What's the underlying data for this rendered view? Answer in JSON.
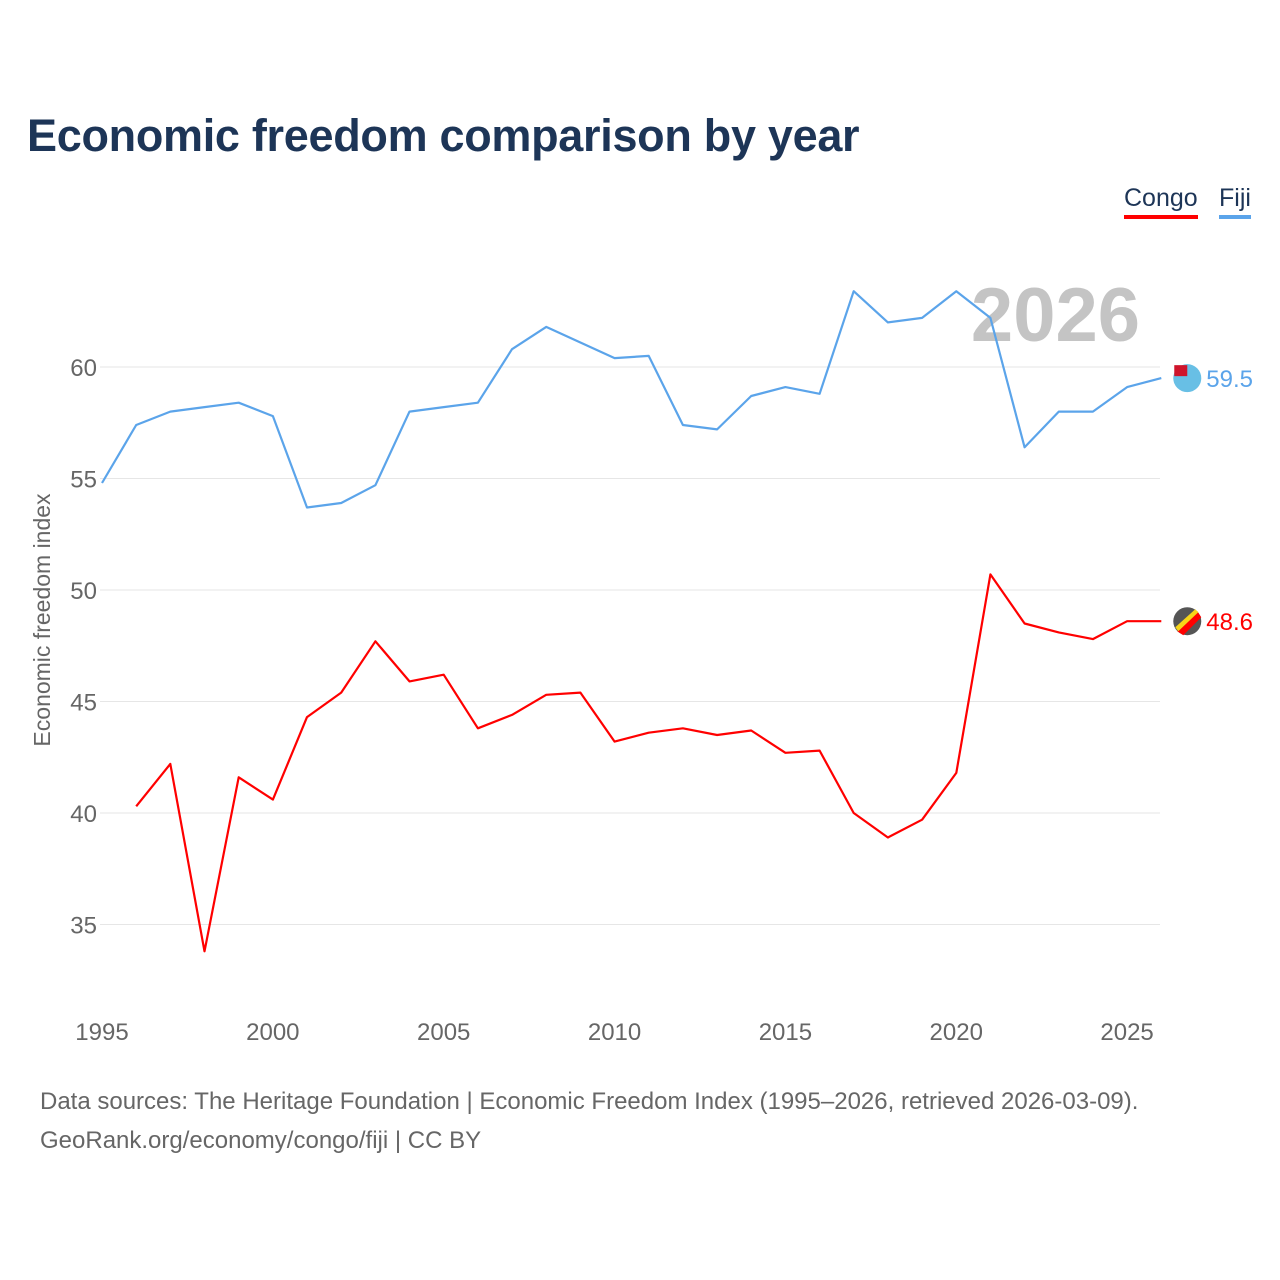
{
  "chart_data": {
    "type": "line",
    "title": "Economic freedom comparison by year",
    "xlabel": "",
    "ylabel": "Economic freedom index",
    "xlim": [
      1995,
      2026
    ],
    "ylim": [
      32,
      65
    ],
    "x_ticks": [
      1995,
      2000,
      2005,
      2010,
      2015,
      2020,
      2025
    ],
    "y_ticks": [
      35,
      40,
      45,
      50,
      55,
      60
    ],
    "grid": true,
    "legend": "top-right",
    "year_watermark": "2026",
    "series": [
      {
        "name": "Congo",
        "color": "#ff0000",
        "end_label": "48.6",
        "x": [
          1996,
          1997,
          1998,
          1999,
          2000,
          2001,
          2002,
          2003,
          2004,
          2005,
          2006,
          2007,
          2008,
          2009,
          2010,
          2011,
          2012,
          2013,
          2014,
          2015,
          2016,
          2017,
          2018,
          2019,
          2020,
          2021,
          2022,
          2023,
          2024,
          2025,
          2026
        ],
        "values": [
          40.3,
          42.2,
          33.8,
          41.6,
          40.6,
          44.3,
          45.4,
          47.7,
          45.9,
          46.2,
          43.8,
          44.4,
          45.3,
          45.4,
          43.2,
          43.6,
          43.8,
          43.5,
          43.7,
          42.7,
          42.8,
          40.0,
          38.9,
          39.7,
          41.8,
          50.7,
          48.5,
          48.1,
          47.8,
          48.6,
          48.6
        ]
      },
      {
        "name": "Fiji",
        "color": "#5ba4ea",
        "end_label": "59.5",
        "x": [
          1995,
          1996,
          1997,
          1998,
          1999,
          2000,
          2001,
          2002,
          2003,
          2004,
          2005,
          2006,
          2007,
          2008,
          2009,
          2010,
          2011,
          2012,
          2013,
          2014,
          2015,
          2016,
          2017,
          2018,
          2019,
          2020,
          2021,
          2022,
          2023,
          2024,
          2025,
          2026
        ],
        "values": [
          54.8,
          57.4,
          58.0,
          58.2,
          58.4,
          57.8,
          53.7,
          53.9,
          54.7,
          58.0,
          58.2,
          58.4,
          60.8,
          61.8,
          61.1,
          60.4,
          60.5,
          57.4,
          57.2,
          58.7,
          59.1,
          58.8,
          63.4,
          62.0,
          62.2,
          63.4,
          62.2,
          56.4,
          58.0,
          58.0,
          59.1,
          59.5
        ]
      }
    ]
  },
  "footer": {
    "line1": "Data sources: The Heritage Foundation | Economic Freedom Index (1995–2026, retrieved 2026-03-09).",
    "line2": "GeoRank.org/economy/congo/fiji | CC BY"
  }
}
